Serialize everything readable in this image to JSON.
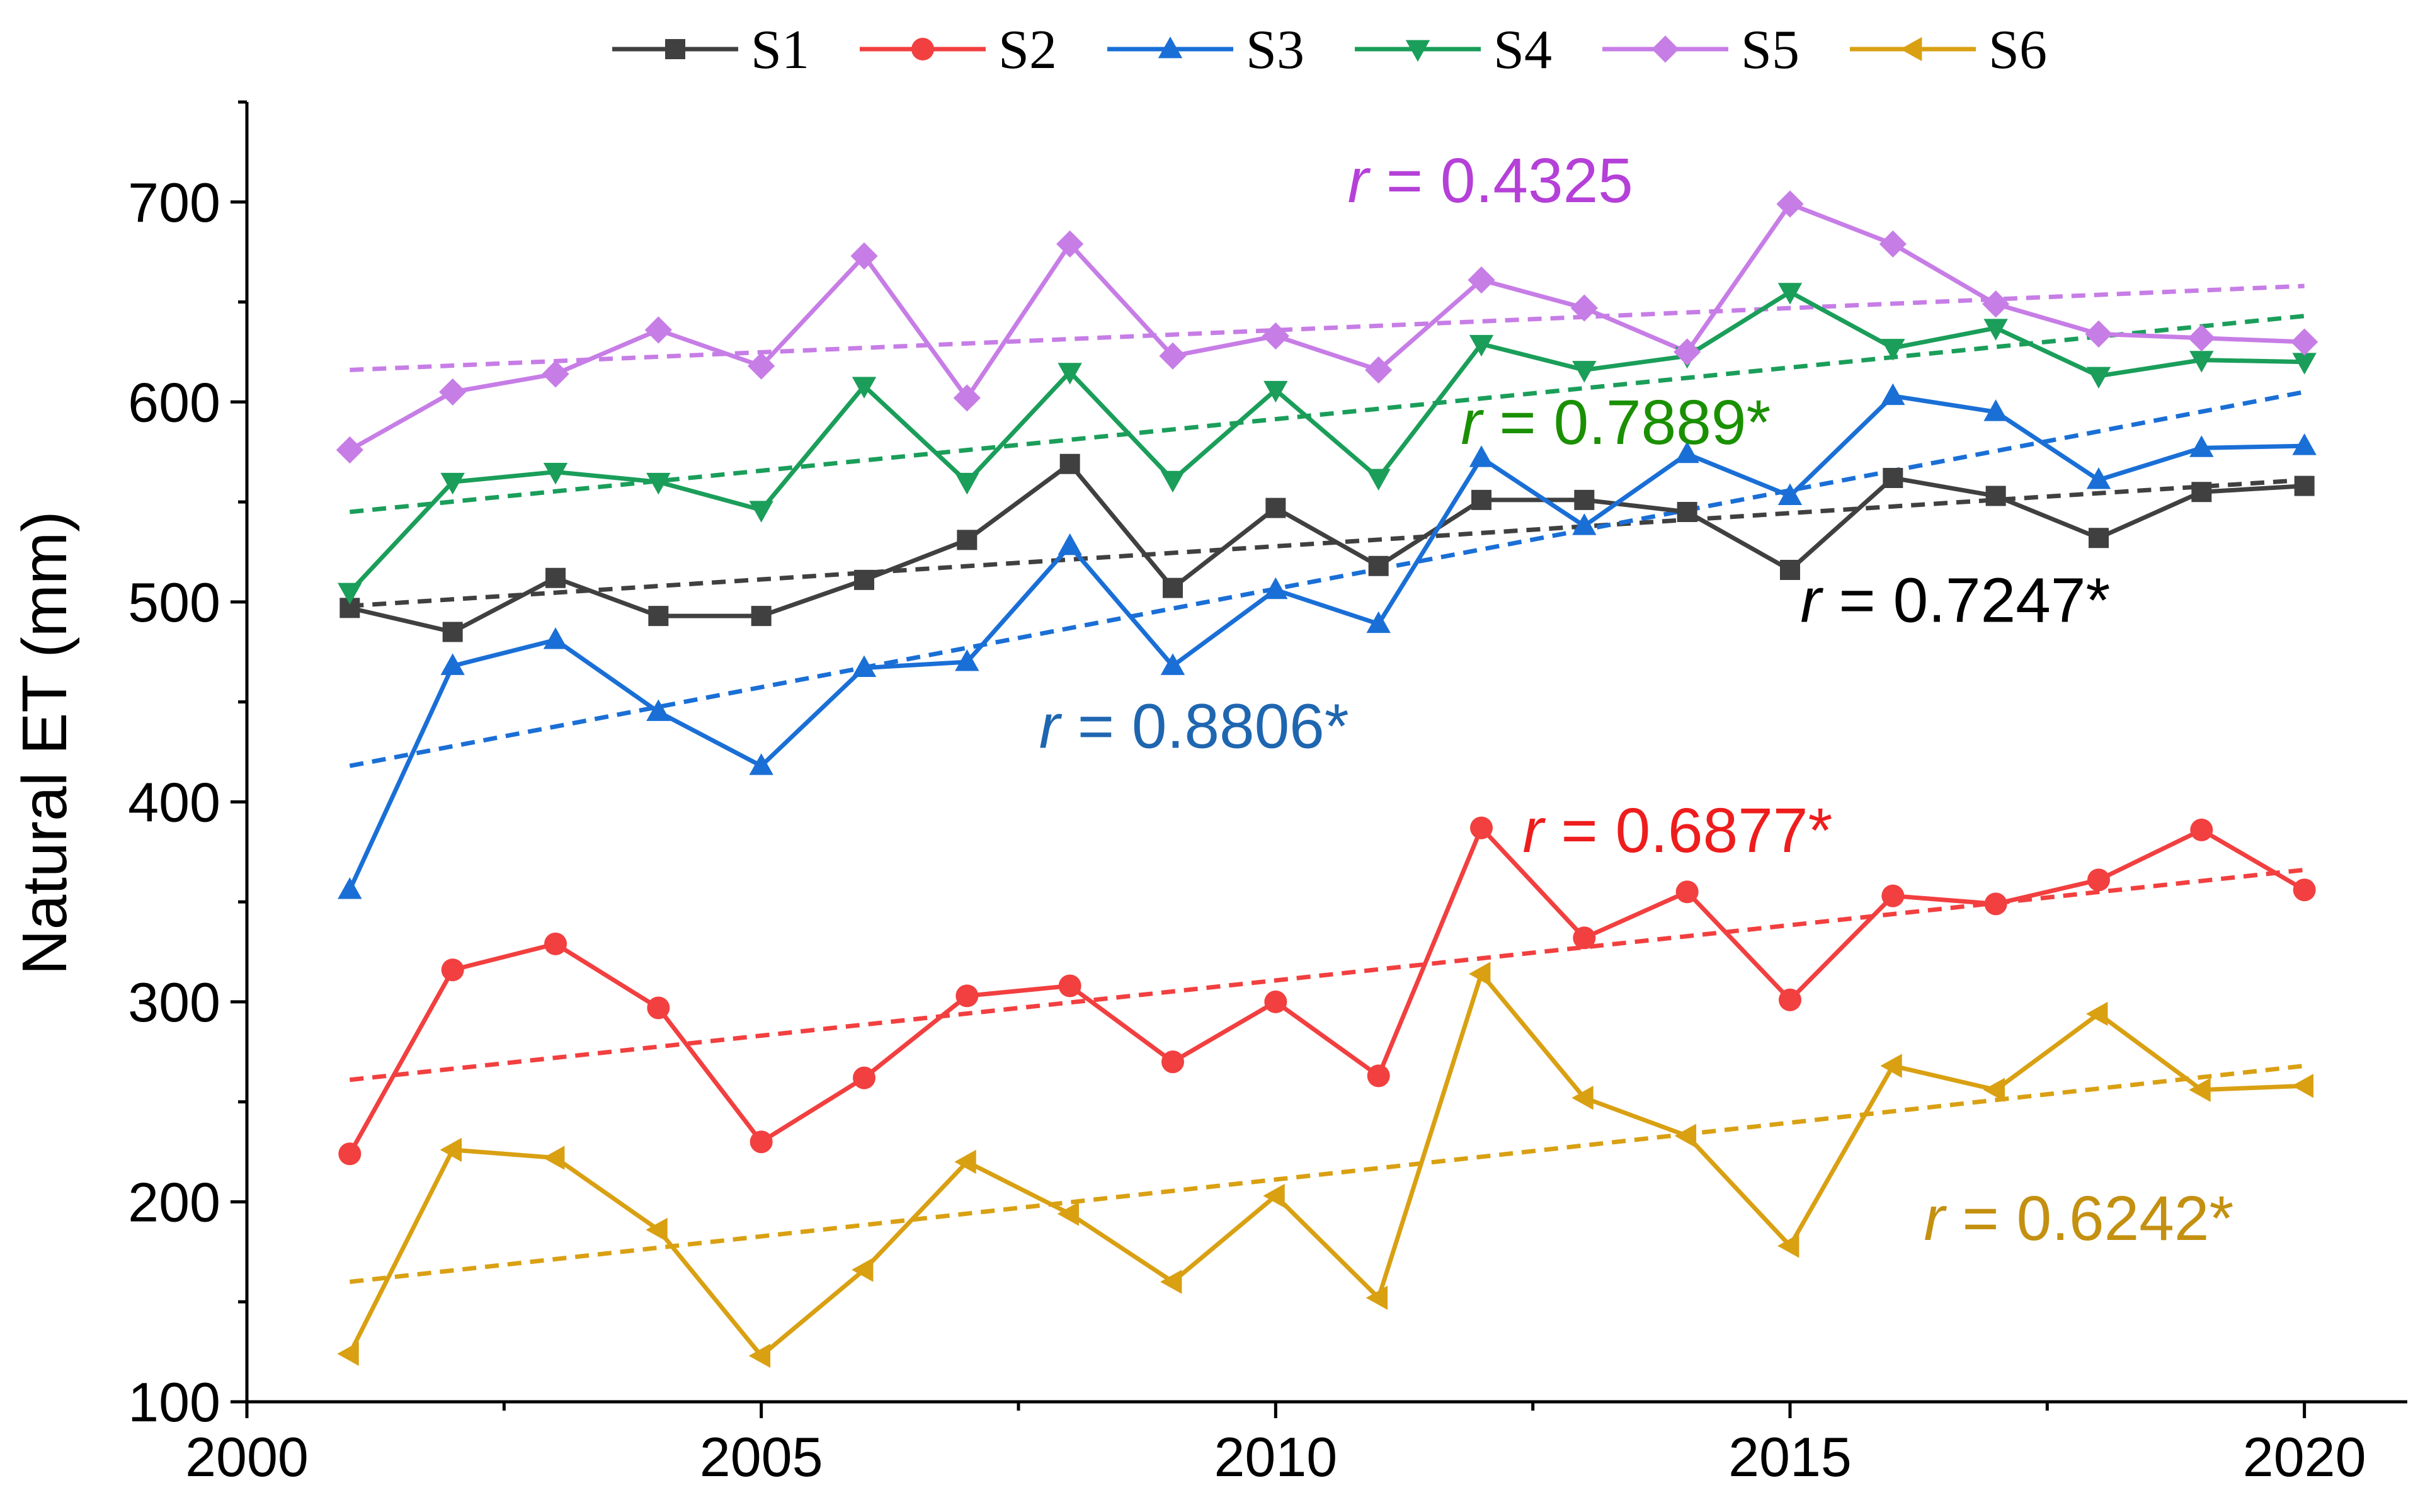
{
  "chart_data": {
    "type": "line",
    "ylabel": "Natural ET (mm)",
    "xlabel": "",
    "xlim": [
      2000,
      2021
    ],
    "ylim": [
      100,
      750
    ],
    "x_ticks": [
      2000,
      2005,
      2010,
      2015,
      2020
    ],
    "y_ticks": [
      100,
      200,
      300,
      400,
      500,
      600,
      700
    ],
    "legend_position": "top",
    "x": [
      2001,
      2002,
      2003,
      2004,
      2005,
      2006,
      2007,
      2008,
      2009,
      2010,
      2011,
      2012,
      2013,
      2014,
      2015,
      2016,
      2017,
      2018,
      2019,
      2020
    ],
    "series": [
      {
        "name": "S1",
        "color": "#404040",
        "marker": "square",
        "values": [
          497,
          485,
          512,
          493,
          493,
          511,
          531,
          569,
          507,
          547,
          518,
          551,
          551,
          545,
          516,
          562,
          553,
          532,
          555,
          558
        ],
        "trend": [
          498,
          561
        ],
        "r_label": "0.7247*"
      },
      {
        "name": "S2",
        "color": "#f23f3f",
        "marker": "circle",
        "values": [
          224,
          316,
          329,
          297,
          230,
          262,
          303,
          308,
          270,
          300,
          263,
          387,
          332,
          355,
          301,
          353,
          349,
          361,
          386,
          356
        ],
        "trend": [
          261,
          366
        ],
        "r_label": "0.6877*"
      },
      {
        "name": "S3",
        "color": "#1a6fd6",
        "marker": "triangle-up",
        "values": [
          356,
          468,
          481,
          445,
          418,
          467,
          470,
          528,
          468,
          506,
          489,
          572,
          538,
          574,
          553,
          603,
          595,
          561,
          577,
          578
        ],
        "trend": [
          418,
          605
        ],
        "r_label": "0.8806*"
      },
      {
        "name": "S4",
        "color": "#1a9e5a",
        "marker": "triangle-down",
        "values": [
          505,
          560,
          565,
          560,
          546,
          608,
          560,
          615,
          561,
          606,
          562,
          629,
          616,
          623,
          655,
          627,
          637,
          613,
          621,
          620
        ],
        "trend": [
          545,
          643
        ],
        "r_label": "0.7889*"
      },
      {
        "name": "S5",
        "color": "#c77de6",
        "marker": "diamond",
        "values": [
          576,
          605,
          614,
          636,
          618,
          673,
          602,
          679,
          623,
          633,
          616,
          661,
          647,
          625,
          699,
          679,
          649,
          634,
          632,
          630
        ],
        "trend": [
          616,
          658
        ],
        "r_label": "0.4325"
      },
      {
        "name": "S6",
        "color": "#d9a012",
        "marker": "triangle-left",
        "values": [
          124,
          226,
          222,
          186,
          123,
          166,
          220,
          194,
          160,
          203,
          152,
          314,
          252,
          233,
          178,
          268,
          256,
          294,
          256,
          258
        ],
        "trend": [
          160,
          268
        ],
        "r_label": "0.6242*"
      }
    ],
    "annotations": [
      {
        "series": "S5",
        "r_symbol": "r",
        "text": " = 0.4325",
        "color": "#b540d8",
        "x": 2010.7,
        "y": 700
      },
      {
        "series": "S4",
        "r_symbol": "r",
        "text": " = 0.7889*",
        "color": "#1a9000",
        "x": 2011.8,
        "y": 579
      },
      {
        "series": "S1",
        "r_symbol": "r",
        "text": " = 0.7247*",
        "color": "#000000",
        "x": 2015.1,
        "y": 490
      },
      {
        "series": "S3",
        "r_symbol": "r",
        "text": " = 0.8806*",
        "color": "#1f66b0",
        "x": 2007.7,
        "y": 427
      },
      {
        "series": "S2",
        "r_symbol": "r",
        "text": " = 0.6877*",
        "color": "#ee1d1d",
        "x": 2012.4,
        "y": 375
      },
      {
        "series": "S6",
        "r_symbol": "r",
        "text": " = 0.6242*",
        "color": "#c49010",
        "x": 2016.3,
        "y": 181
      }
    ]
  }
}
